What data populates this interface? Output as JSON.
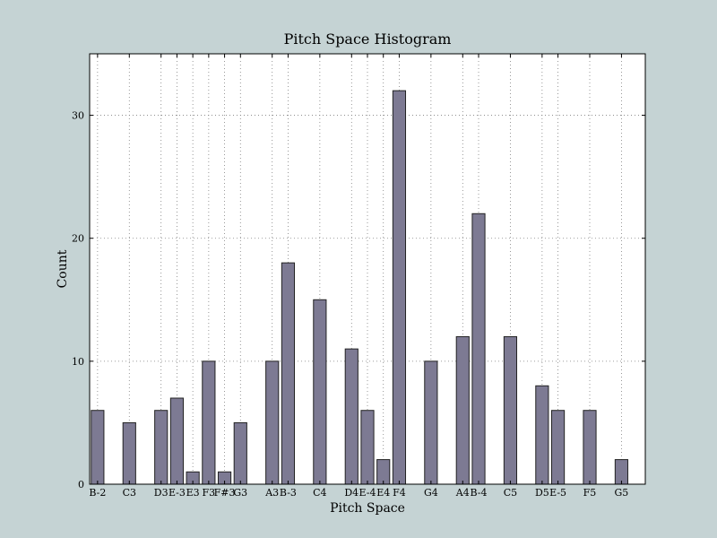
{
  "colors": {
    "figure_background": "#c5d3d4",
    "plot_background": "#ffffff",
    "bar_fill": "#7d7a93",
    "bar_edge": "#222222",
    "grid": "#7f7f7f"
  },
  "chart_data": {
    "type": "bar",
    "title": "Pitch Space Histogram",
    "xlabel": "Pitch Space",
    "ylabel": "Count",
    "xlim": [
      45.5,
      80.5
    ],
    "ylim": [
      0,
      35
    ],
    "yticks": [
      0,
      10,
      20,
      30
    ],
    "grid": true,
    "bars": [
      {
        "pitch": 46,
        "label": "B-2",
        "value": 6
      },
      {
        "pitch": 48,
        "label": "C3",
        "value": 5
      },
      {
        "pitch": 50,
        "label": "D3",
        "value": 6
      },
      {
        "pitch": 51,
        "label": "E-3",
        "value": 7
      },
      {
        "pitch": 52,
        "label": "E3",
        "value": 1
      },
      {
        "pitch": 53,
        "label": "F3",
        "value": 10
      },
      {
        "pitch": 54,
        "label": "F#3",
        "value": 1
      },
      {
        "pitch": 55,
        "label": "G3",
        "value": 5
      },
      {
        "pitch": 57,
        "label": "A3",
        "value": 10
      },
      {
        "pitch": 58,
        "label": "B-3",
        "value": 18
      },
      {
        "pitch": 60,
        "label": "C4",
        "value": 15
      },
      {
        "pitch": 62,
        "label": "D4",
        "value": 11
      },
      {
        "pitch": 63,
        "label": "E-4",
        "value": 6
      },
      {
        "pitch": 64,
        "label": "E4",
        "value": 2
      },
      {
        "pitch": 65,
        "label": "F4",
        "value": 32
      },
      {
        "pitch": 67,
        "label": "G4",
        "value": 10
      },
      {
        "pitch": 69,
        "label": "A4",
        "value": 12
      },
      {
        "pitch": 70,
        "label": "B-4",
        "value": 22
      },
      {
        "pitch": 72,
        "label": "C5",
        "value": 12
      },
      {
        "pitch": 74,
        "label": "D5",
        "value": 8
      },
      {
        "pitch": 75,
        "label": "E-5",
        "value": 6
      },
      {
        "pitch": 77,
        "label": "F5",
        "value": 6
      },
      {
        "pitch": 79,
        "label": "G5",
        "value": 2
      }
    ]
  }
}
